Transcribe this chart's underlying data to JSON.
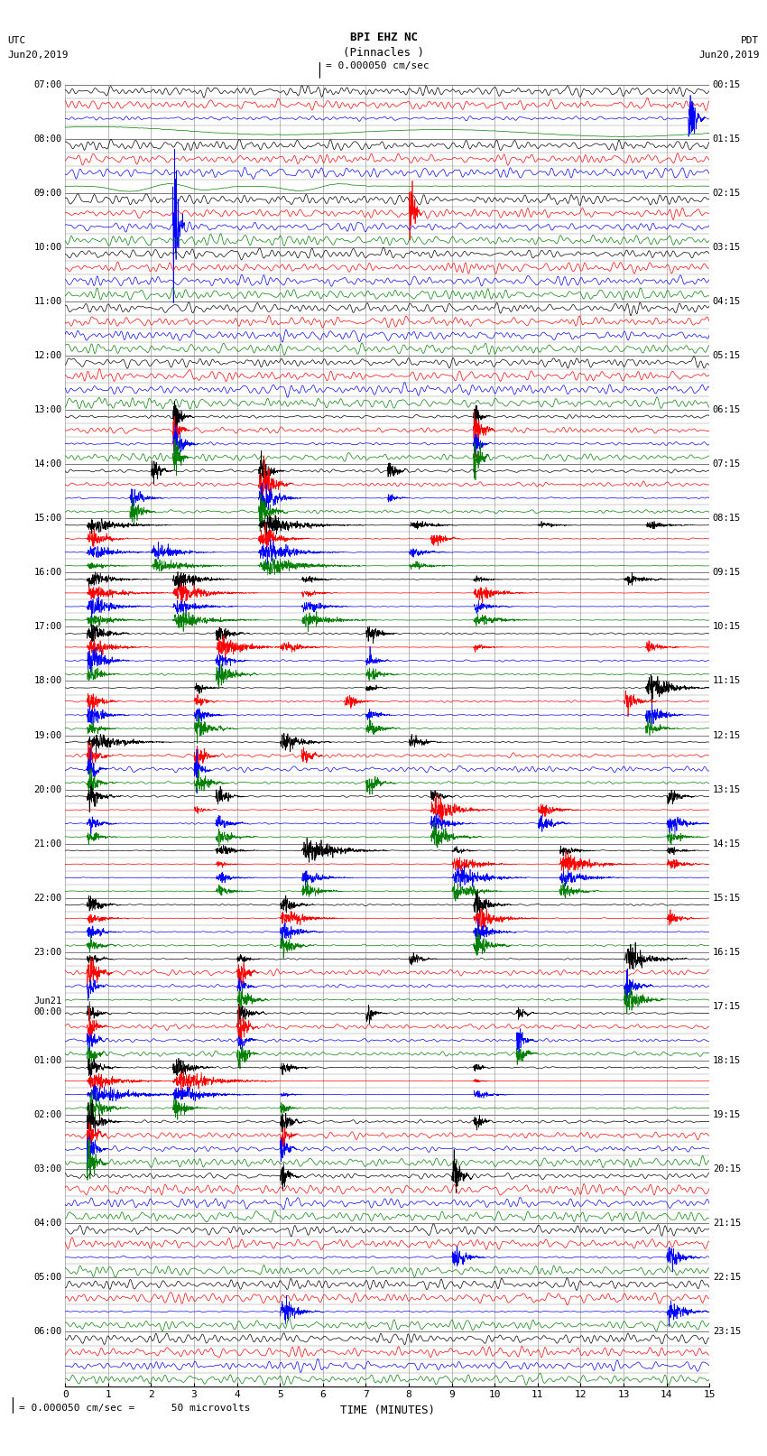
{
  "title_line1": "BPI EHZ NC",
  "title_line2": "(Pinnacles )",
  "scale_label": "= 0.000050 cm/sec",
  "left_header_line1": "UTC",
  "left_header_line2": "Jun20,2019",
  "right_header_line1": "PDT",
  "right_header_line2": "Jun20,2019",
  "bottom_label": "TIME (MINUTES)",
  "footnote": "= 0.000050 cm/sec =      50 microvolts",
  "utc_times": [
    "07:00",
    "08:00",
    "09:00",
    "10:00",
    "11:00",
    "12:00",
    "13:00",
    "14:00",
    "15:00",
    "16:00",
    "17:00",
    "18:00",
    "19:00",
    "20:00",
    "21:00",
    "22:00",
    "23:00",
    "Jun21\n00:00",
    "01:00",
    "02:00",
    "03:00",
    "04:00",
    "05:00",
    "06:00"
  ],
  "pdt_times": [
    "00:15",
    "01:15",
    "02:15",
    "03:15",
    "04:15",
    "05:15",
    "06:15",
    "07:15",
    "08:15",
    "09:15",
    "10:15",
    "11:15",
    "12:15",
    "13:15",
    "14:15",
    "15:15",
    "16:15",
    "17:15",
    "18:15",
    "19:15",
    "20:15",
    "21:15",
    "22:15",
    "23:15"
  ],
  "n_rows": 24,
  "traces_per_row": 4,
  "trace_colors": [
    "black",
    "red",
    "blue",
    "green"
  ],
  "bg_color": "white",
  "fig_width": 8.5,
  "fig_height": 16.13,
  "x_min": 0,
  "x_max": 15,
  "x_ticks": [
    0,
    1,
    2,
    3,
    4,
    5,
    6,
    7,
    8,
    9,
    10,
    11,
    12,
    13,
    14,
    15
  ],
  "dpi": 100
}
